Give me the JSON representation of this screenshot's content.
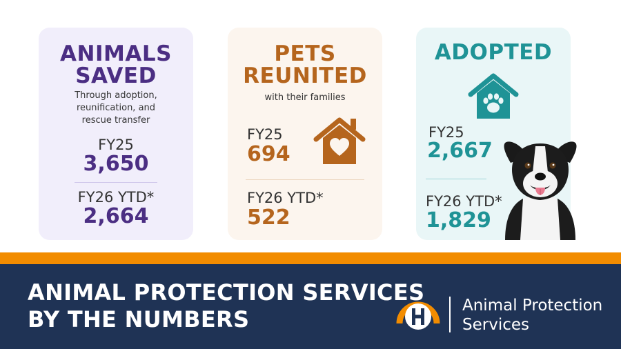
{
  "cards": [
    {
      "title_line1": "ANIMALS",
      "title_line2": "SAVED",
      "subtitle_lines": [
        "Through adoption,",
        "reunification, and",
        "rescue transfer"
      ],
      "fy25_label": "FY25",
      "fy25_value": "3,650",
      "fy26_label": "FY26 YTD*",
      "fy26_value": "2,664",
      "accent_color": "#4b2e83",
      "background_color": "#f1eefb"
    },
    {
      "title_line1": "PETS",
      "title_line2": "REUNITED",
      "subtitle_lines": [
        "with their families"
      ],
      "icon": "house-heart-icon",
      "fy25_label": "FY25",
      "fy25_value": "694",
      "fy26_label": "FY26 YTD*",
      "fy26_value": "522",
      "accent_color": "#b5651d",
      "background_color": "#fcf5ee"
    },
    {
      "title_line1": "ADOPTED",
      "icon": "house-paw-icon",
      "photo": "dog-photo",
      "fy25_label": "FY25",
      "fy25_value": "2,667",
      "fy26_label": "FY26 YTD*",
      "fy26_value": "1,829",
      "accent_color": "#1f9396",
      "background_color": "#e9f6f7"
    }
  ],
  "footer": {
    "heading_line1": "ANIMAL PROTECTION SERVICES",
    "heading_line2": "BY THE NUMBERS",
    "logo": "h-logo-icon",
    "brand_line1": "Animal Protection",
    "brand_line2": "Services",
    "orange_band_color": "#f28c00",
    "navy_band_color": "#1f3355"
  }
}
